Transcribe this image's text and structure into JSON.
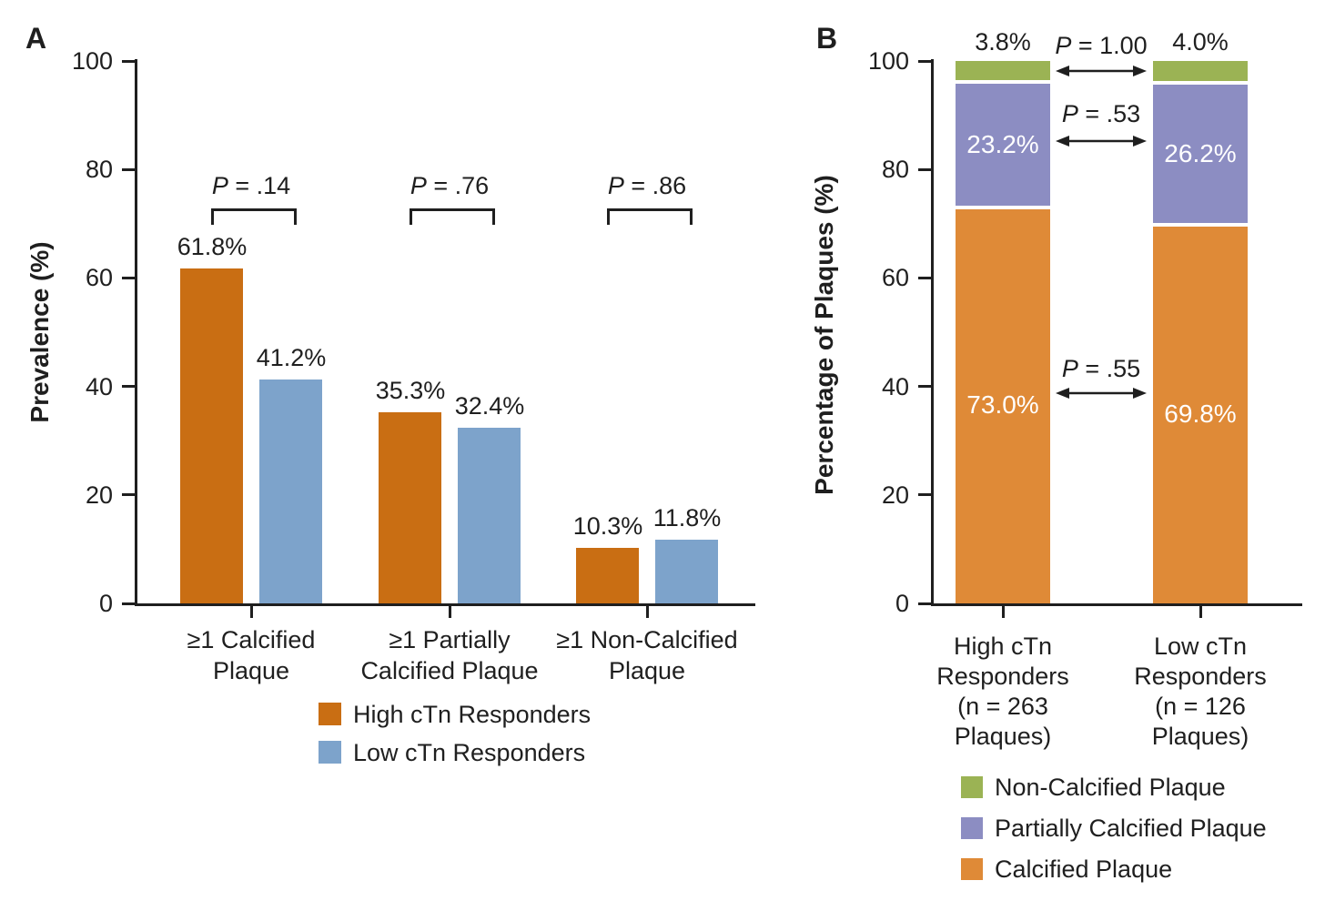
{
  "figure": {
    "type": "two-panel bar figure",
    "text_color": "#1f1f1f"
  },
  "chart_data": [
    {
      "panel": "A",
      "type": "bar",
      "title": "",
      "xlabel": "",
      "ylabel": "Prevalence (%)",
      "ylim": [
        0,
        100
      ],
      "yticks": [
        0,
        20,
        40,
        60,
        80,
        100
      ],
      "grid": false,
      "legend_position": "below-center",
      "categories": [
        [
          "≥1 Calcified",
          "Plaque"
        ],
        [
          "≥1 Partially",
          "Calcified Plaque"
        ],
        [
          "≥1 Non-Calcified",
          "Plaque"
        ]
      ],
      "series": [
        {
          "name": "High cTn Responders",
          "color": "#c96e13",
          "values": [
            61.8,
            35.3,
            10.3
          ],
          "labels": [
            "61.8%",
            "35.3%",
            "10.3%"
          ]
        },
        {
          "name": "Low cTn Responders",
          "color": "#7da3cb",
          "values": [
            41.2,
            32.4,
            11.8
          ],
          "labels": [
            "41.2%",
            "32.4%",
            "11.8%"
          ]
        }
      ],
      "p_values": [
        "P = .14",
        "P = .76",
        "P = .86"
      ]
    },
    {
      "panel": "B",
      "type": "stacked-bar",
      "title": "",
      "xlabel": "",
      "ylabel": "Percentage of Plaques (%)",
      "ylim": [
        0,
        100
      ],
      "yticks": [
        0,
        20,
        40,
        60,
        80,
        100
      ],
      "grid": false,
      "legend_position": "below-center",
      "categories": [
        [
          "High cTn",
          "Responders",
          "(n = 263",
          "Plaques)"
        ],
        [
          "Low cTn",
          "Responders",
          "(n = 126",
          "Plaques)"
        ]
      ],
      "series": [
        {
          "name": "Calcified Plaque",
          "color": "#df8a37",
          "values": [
            73.0,
            69.8
          ],
          "labels": [
            "73.0%",
            "69.8%"
          ],
          "label_style": "inside-white"
        },
        {
          "name": "Partially Calcified Plaque",
          "color": "#8c8dc2",
          "values": [
            23.2,
            26.2
          ],
          "labels": [
            "23.2%",
            "26.2%"
          ],
          "label_style": "inside-white"
        },
        {
          "name": "Non-Calcified Plaque",
          "color": "#9bb354",
          "values": [
            3.8,
            4.0
          ],
          "labels": [
            "3.8%",
            "4.0%"
          ],
          "label_style": "above"
        }
      ],
      "annotations": [
        {
          "label": "P = 1.00",
          "between": "Non-Calcified Plaque segments"
        },
        {
          "label": "P = .53",
          "between": "Partially Calcified Plaque segments"
        },
        {
          "label": "P = .55",
          "between": "Calcified Plaque segments"
        }
      ]
    }
  ]
}
